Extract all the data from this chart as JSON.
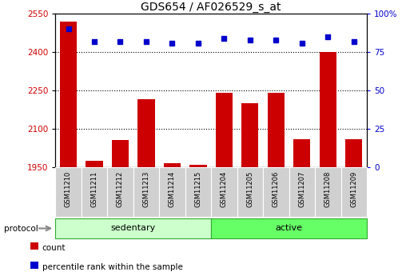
{
  "title": "GDS654 / AF026529_s_at",
  "samples": [
    "GSM11210",
    "GSM11211",
    "GSM11212",
    "GSM11213",
    "GSM11214",
    "GSM11215",
    "GSM11204",
    "GSM11205",
    "GSM11206",
    "GSM11207",
    "GSM11208",
    "GSM11209"
  ],
  "counts": [
    2520,
    1975,
    2055,
    2215,
    1965,
    1960,
    2240,
    2200,
    2240,
    2060,
    2400,
    2060
  ],
  "percentiles": [
    90,
    82,
    82,
    82,
    81,
    81,
    84,
    83,
    83,
    81,
    85,
    82
  ],
  "groups": [
    "sedentary",
    "sedentary",
    "sedentary",
    "sedentary",
    "sedentary",
    "sedentary",
    "active",
    "active",
    "active",
    "active",
    "active",
    "active"
  ],
  "group_colors": {
    "sedentary": "#ccffcc",
    "active": "#66ff66"
  },
  "bar_color": "#cc0000",
  "dot_color": "#0000cc",
  "ylim_left": [
    1950,
    2550
  ],
  "ylim_right": [
    0,
    100
  ],
  "yticks_left": [
    1950,
    2100,
    2250,
    2400,
    2550
  ],
  "yticks_right": [
    0,
    25,
    50,
    75,
    100
  ],
  "grid_values": [
    2100,
    2250,
    2400
  ],
  "legend_count_label": "count",
  "legend_pct_label": "percentile rank within the sample",
  "protocol_label": "protocol",
  "label_box_color": "#d0d0d0",
  "label_box_edge": "#aaaaaa",
  "fig_width": 5.13,
  "fig_height": 3.45,
  "fig_dpi": 100
}
